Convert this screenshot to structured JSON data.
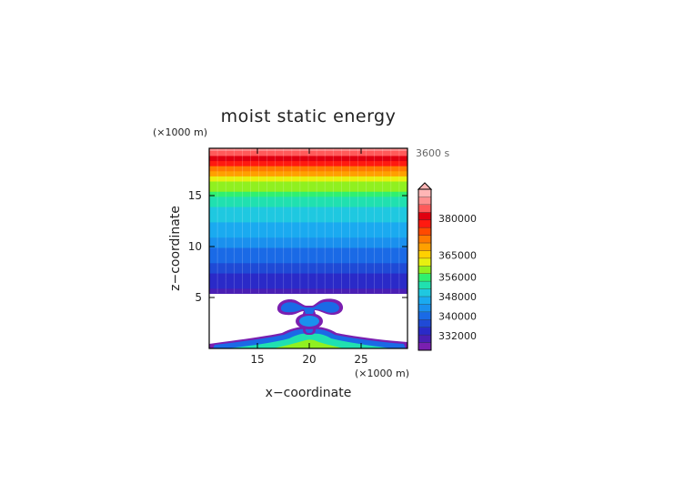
{
  "chart_data": {
    "type": "heatmap",
    "title": "moist static energy",
    "xlabel": "x−coordinate",
    "ylabel": "z−coordinate",
    "x_unit": "(×1000 m)",
    "y_unit": "(×1000 m)",
    "time_label": "3600 s",
    "xlim": [
      10,
      29.2
    ],
    "ylim": [
      0,
      19.6
    ],
    "x_ticks": [
      15,
      20,
      25
    ],
    "y_ticks": [
      5,
      10,
      15
    ],
    "stable_layer_base_km": 5.4,
    "colorbar": {
      "min": 326000,
      "max": 392000,
      "extend": "max",
      "labels": [
        380000,
        365000,
        356000,
        348000,
        340000,
        332000
      ],
      "colors": [
        "#7a1fb0",
        "#4a1fb4",
        "#2a2ac8",
        "#1f4ad6",
        "#1a6ae6",
        "#1a90ee",
        "#1aaaf0",
        "#1fc8e0",
        "#20e0b0",
        "#30f070",
        "#90f020",
        "#e8f010",
        "#ffd000",
        "#ffa000",
        "#ff7a00",
        "#ff4a00",
        "#ff1a10",
        "#e00010",
        "#ff5a5a",
        "#ff9090",
        "#ffb6b6"
      ]
    },
    "profile_z_km": [
      5.4,
      6.5,
      7.5,
      8.5,
      9.5,
      10.5,
      11.5,
      12.5,
      13.5,
      14.5,
      15.5,
      16.5,
      17.3,
      18.0,
      18.7,
      19.6
    ],
    "profile_mse_J_per_kg": [
      330500,
      333500,
      336000,
      338500,
      341000,
      343500,
      346000,
      348000,
      350000,
      353000,
      357000,
      362000,
      368000,
      376000,
      382000,
      388000
    ]
  }
}
